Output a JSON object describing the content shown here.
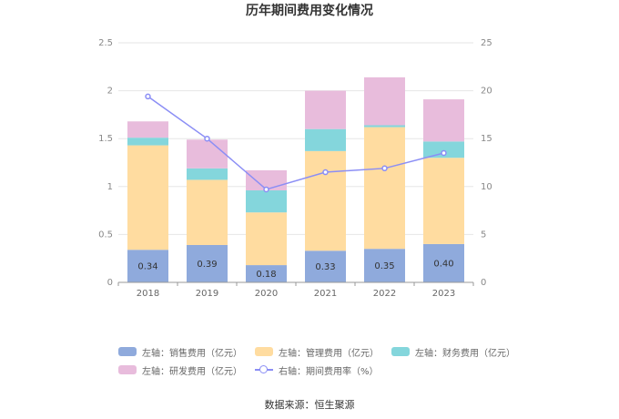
{
  "chart_data": {
    "type": "bar",
    "title": "历年期间费用变化情况",
    "categories": [
      "2018",
      "2019",
      "2020",
      "2021",
      "2022",
      "2023"
    ],
    "stacked": true,
    "series": [
      {
        "name": "左轴：销售费用（亿元）",
        "axis": "left",
        "color": "#8faadc",
        "values": [
          0.34,
          0.39,
          0.18,
          0.33,
          0.35,
          0.4
        ],
        "labels": [
          "0.34",
          "0.39",
          "0.18",
          "0.33",
          "0.35",
          "0.40"
        ]
      },
      {
        "name": "左轴：管理费用（亿元）",
        "axis": "left",
        "color": "#ffdca0",
        "values": [
          1.09,
          0.68,
          0.55,
          1.04,
          1.27,
          0.9
        ]
      },
      {
        "name": "左轴：财务费用（亿元）",
        "axis": "left",
        "color": "#84d6dc",
        "values": [
          0.08,
          0.12,
          0.23,
          0.23,
          0.02,
          0.17
        ]
      },
      {
        "name": "左轴：研发费用（亿元）",
        "axis": "left",
        "color": "#e8bcdc",
        "values": [
          0.17,
          0.3,
          0.21,
          0.4,
          0.5,
          0.44
        ]
      },
      {
        "name": "右轴：期间费用率（%）",
        "axis": "right",
        "type": "line",
        "color": "#8b8ef5",
        "values": [
          19.4,
          15.0,
          9.7,
          11.5,
          11.9,
          13.5
        ]
      }
    ],
    "left_axis": {
      "ylim": [
        0,
        2.5
      ],
      "ticks": [
        "0",
        "0.5",
        "1",
        "1.5",
        "2",
        "2.5"
      ]
    },
    "right_axis": {
      "ylim": [
        0,
        25
      ],
      "ticks": [
        "0",
        "5",
        "10",
        "15",
        "20",
        "25"
      ]
    },
    "grid": true,
    "legend_position": "bottom"
  },
  "source": "数据来源：恒生聚源"
}
